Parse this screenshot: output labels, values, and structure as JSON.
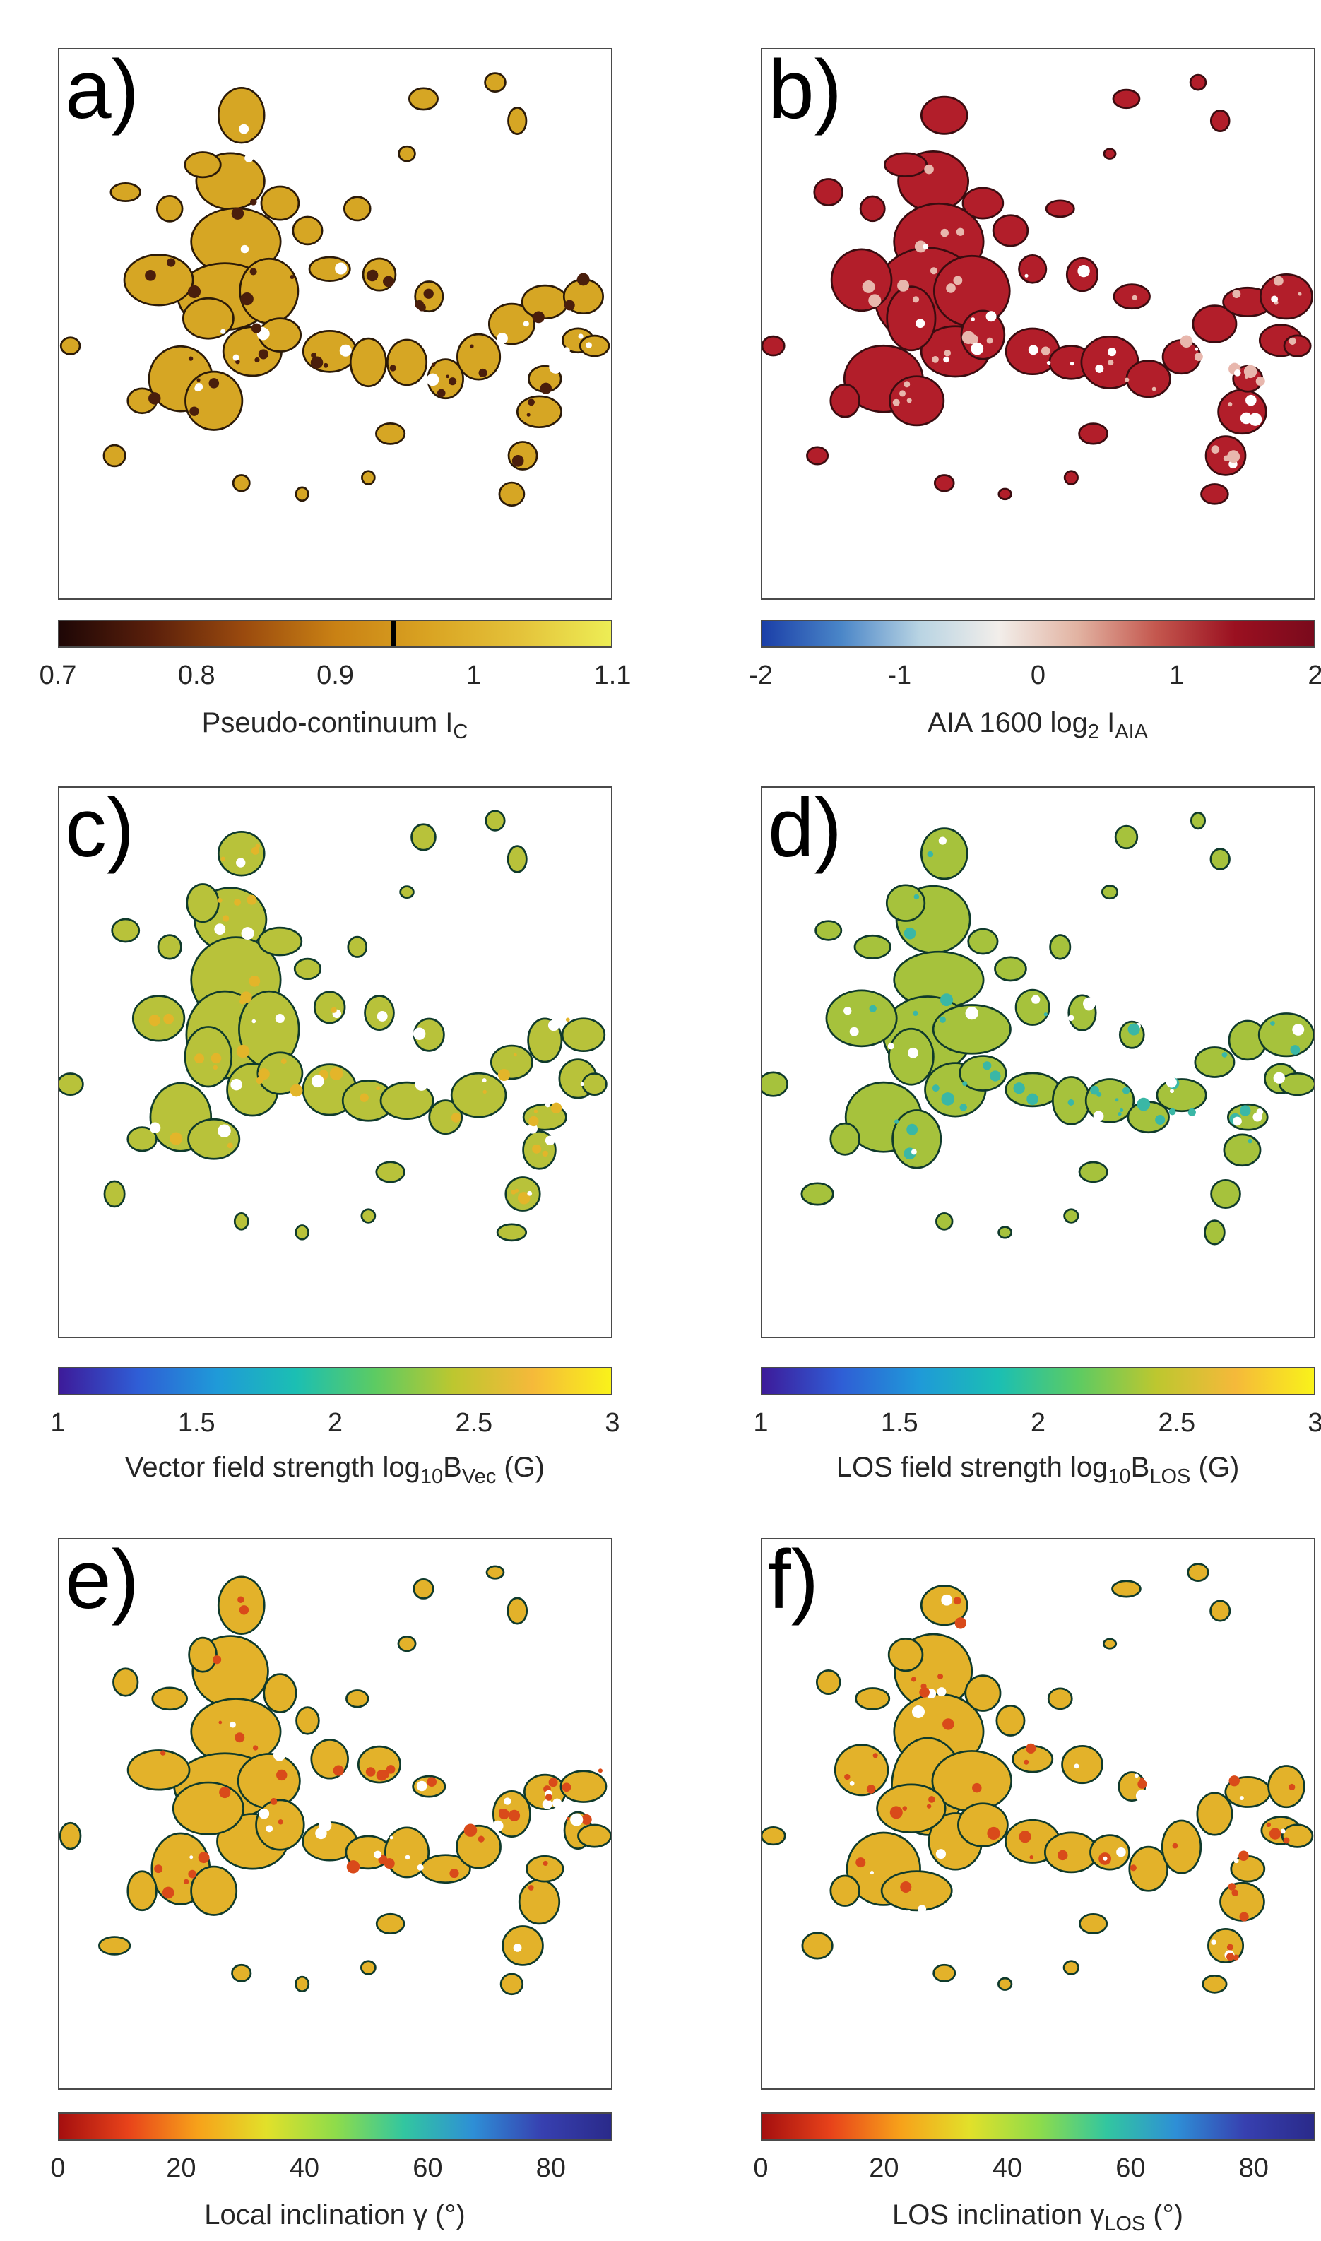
{
  "figure": {
    "panels": [
      {
        "label": "a)",
        "map_colors": {
          "fill": "#d6a624",
          "dark": "#4a1e0c",
          "edge": "#2b1a08"
        },
        "colorbar": {
          "gradient": [
            "#1e0706",
            "#5a1f0b",
            "#9a4a0e",
            "#c98114",
            "#d9a322",
            "#e4c23a",
            "#eded55"
          ],
          "marker_value": 0.94,
          "range": [
            0.7,
            1.1
          ],
          "ticks": [
            {
              "label": "0.7",
              "value": 0.7
            },
            {
              "label": "0.8",
              "value": 0.8
            },
            {
              "label": "0.9",
              "value": 0.9
            },
            {
              "label": "1",
              "value": 1.0
            },
            {
              "label": "1.1",
              "value": 1.1
            }
          ],
          "title": {
            "main": "Pseudo-continuum I",
            "sub": "C",
            "sub2": "",
            "tail": ""
          }
        }
      },
      {
        "label": "b)",
        "map_colors": {
          "fill": "#b21e2a",
          "dark": "#e8b7ad",
          "edge": "#3a0c10"
        },
        "colorbar": {
          "gradient": [
            "#1b3fa8",
            "#4a86c8",
            "#b9d4e3",
            "#f2eeea",
            "#e2b3a2",
            "#c4574e",
            "#9a1020",
            "#7a0a1c"
          ],
          "marker_value": null,
          "range": [
            -2,
            2
          ],
          "ticks": [
            {
              "label": "-2",
              "value": -2
            },
            {
              "label": "-1",
              "value": -1
            },
            {
              "label": "0",
              "value": 0
            },
            {
              "label": "1",
              "value": 1
            },
            {
              "label": "2",
              "value": 2
            }
          ],
          "title": {
            "main": "AIA 1600 log",
            "sub": "2",
            "sub2": "",
            "tail": " I",
            "tailSub": "AIA"
          }
        }
      },
      {
        "label": "c)",
        "map_colors": {
          "fill": "#b8c23a",
          "dark": "#e3b52a",
          "edge": "#0f3a2c"
        },
        "colorbar": {
          "gradient": [
            "#3d1b9a",
            "#2f5ed6",
            "#1f9ad8",
            "#1bbfb3",
            "#5ccb63",
            "#bdc72f",
            "#f5b93a",
            "#f9f21a"
          ],
          "marker_value": null,
          "range": [
            1,
            3
          ],
          "ticks": [
            {
              "label": "1",
              "value": 1
            },
            {
              "label": "1.5",
              "value": 1.5
            },
            {
              "label": "2",
              "value": 2
            },
            {
              "label": "2.5",
              "value": 2.5
            },
            {
              "label": "3",
              "value": 3
            }
          ],
          "title": {
            "main": "Vector field strength log",
            "sub": "10",
            "sub2": "",
            "tail": "B",
            "tailSub": "Vec",
            "end": " (G)"
          }
        }
      },
      {
        "label": "d)",
        "map_colors": {
          "fill": "#a6c23c",
          "dark": "#3ab7a6",
          "edge": "#0f3a2c"
        },
        "colorbar": {
          "gradient": [
            "#3d1b9a",
            "#2f5ed6",
            "#1f9ad8",
            "#1bbfb3",
            "#5ccb63",
            "#bdc72f",
            "#f5b93a",
            "#f9f21a"
          ],
          "marker_value": null,
          "range": [
            1,
            3
          ],
          "ticks": [
            {
              "label": "1",
              "value": 1
            },
            {
              "label": "1.5",
              "value": 1.5
            },
            {
              "label": "2",
              "value": 2
            },
            {
              "label": "2.5",
              "value": 2.5
            },
            {
              "label": "3",
              "value": 3
            }
          ],
          "title": {
            "main": "LOS field strength log",
            "sub": "10",
            "sub2": "",
            "tail": "B",
            "tailSub": "LOS",
            "end": " (G)"
          }
        }
      },
      {
        "label": "e)",
        "map_colors": {
          "fill": "#e3b22a",
          "dark": "#d94a1a",
          "edge": "#0f3a2c"
        },
        "colorbar": {
          "gradient": [
            "#a50f0f",
            "#e8431a",
            "#f7a11a",
            "#e2e02a",
            "#8fdc4a",
            "#32c6a0",
            "#2e8fd6",
            "#3740b0",
            "#2a2a8a"
          ],
          "marker_value": null,
          "range": [
            0,
            90
          ],
          "ticks": [
            {
              "label": "0",
              "value": 0
            },
            {
              "label": "20",
              "value": 20
            },
            {
              "label": "40",
              "value": 40
            },
            {
              "label": "60",
              "value": 60
            },
            {
              "label": "80",
              "value": 80
            }
          ],
          "title": {
            "main": "Local inclination γ (°)",
            "sub": "",
            "sub2": "",
            "tail": ""
          }
        }
      },
      {
        "label": "f)",
        "map_colors": {
          "fill": "#e3b22a",
          "dark": "#d94a1a",
          "edge": "#0f3a2c"
        },
        "colorbar": {
          "gradient": [
            "#a50f0f",
            "#e8431a",
            "#f7a11a",
            "#e2e02a",
            "#8fdc4a",
            "#32c6a0",
            "#2e8fd6",
            "#3740b0",
            "#2a2a8a"
          ],
          "marker_value": null,
          "range": [
            0,
            90
          ],
          "ticks": [
            {
              "label": "0",
              "value": 0
            },
            {
              "label": "20",
              "value": 20
            },
            {
              "label": "40",
              "value": 40
            },
            {
              "label": "60",
              "value": 60
            },
            {
              "label": "80",
              "value": 80
            }
          ],
          "title": {
            "main": "LOS inclination γ",
            "sub": "LOS",
            "sub2": "",
            "tail": " (°)"
          }
        }
      }
    ]
  }
}
